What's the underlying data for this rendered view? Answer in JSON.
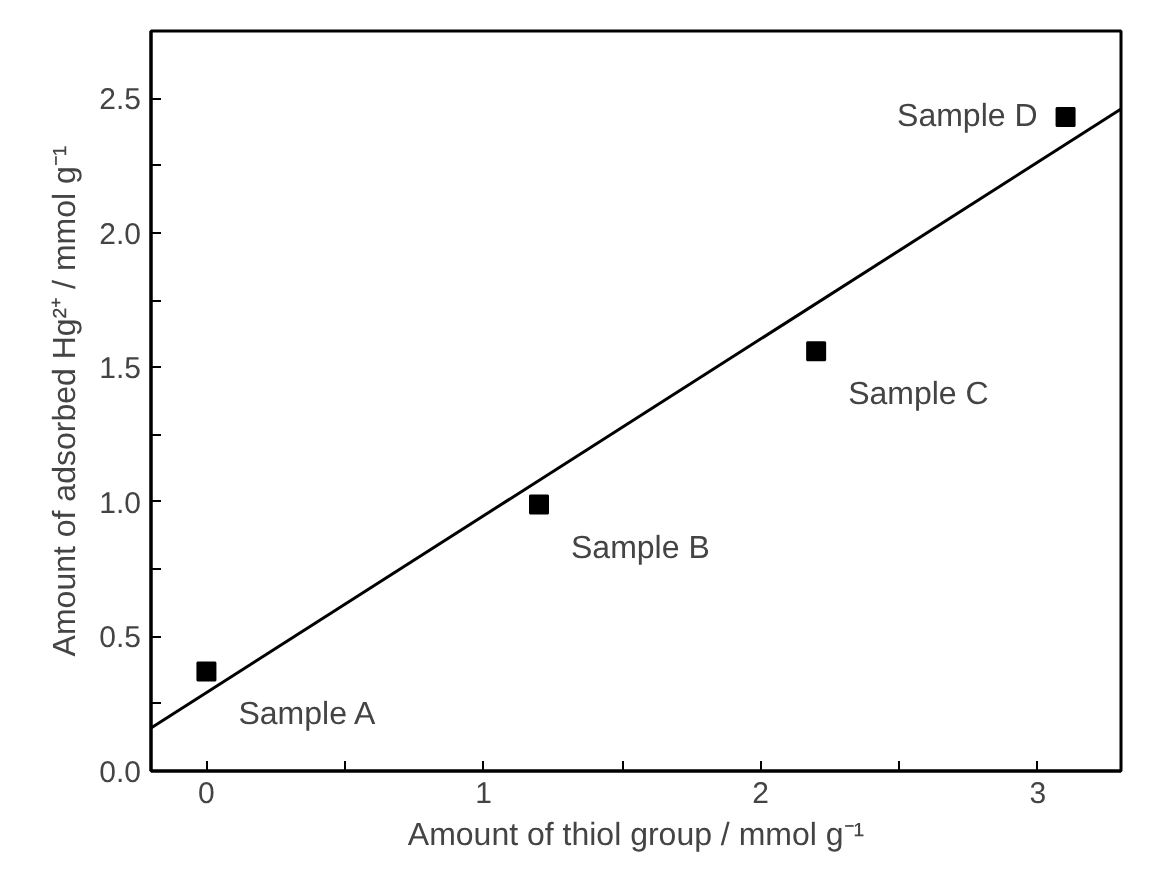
{
  "chart_data": {
    "type": "scatter",
    "xlabel": "Amount of thiol group / mmol g⁻¹",
    "ylabel": "Amount of adsorbed Hg²⁺ / mmol g⁻¹",
    "grid": false,
    "xlim": [
      -0.2,
      3.3
    ],
    "ylim": [
      0,
      2.75
    ],
    "xticks": [
      0,
      {
        "value": 0.5,
        "label": null
      },
      1,
      {
        "value": 1.5,
        "label": null
      },
      2,
      {
        "value": 2.5,
        "label": null
      },
      3
    ],
    "yticks": [
      "0.0",
      {
        "value": 0.25,
        "label": null
      },
      {
        "value": 0.5,
        "label": "0.5"
      },
      {
        "value": 0.75,
        "label": null
      },
      {
        "value": 1,
        "label": "1.0"
      },
      {
        "value": 1.25,
        "label": null
      },
      {
        "value": 1.5,
        "label": "1.5"
      },
      {
        "value": 1.75,
        "label": null
      },
      {
        "value": 2,
        "label": "2.0"
      },
      {
        "value": 2.25,
        "label": null
      },
      {
        "value": 2.5,
        "label": "2.5"
      }
    ],
    "series": [
      {
        "color": "#000000",
        "marker": "square",
        "x": [
          0,
          1.2,
          2.2,
          3.1
        ],
        "values": [
          0.37,
          0.99,
          1.56,
          2.43
        ]
      },
      {
        "type": "line",
        "color": "#000000",
        "marker": "none",
        "x": [
          -0.2,
          3.3
        ],
        "values": [
          0.16,
          2.46
        ]
      }
    ],
    "annotations": [
      {
        "text": "Sample A",
        "x": 0,
        "y": 0.37
      },
      {
        "text": "Sample B",
        "x": 1.2,
        "y": 0.99
      },
      {
        "text": "Sample C",
        "x": 2.2,
        "y": 1.56
      },
      {
        "text": "Sample D",
        "x": 3.1,
        "y": 2.43
      }
    ]
  }
}
